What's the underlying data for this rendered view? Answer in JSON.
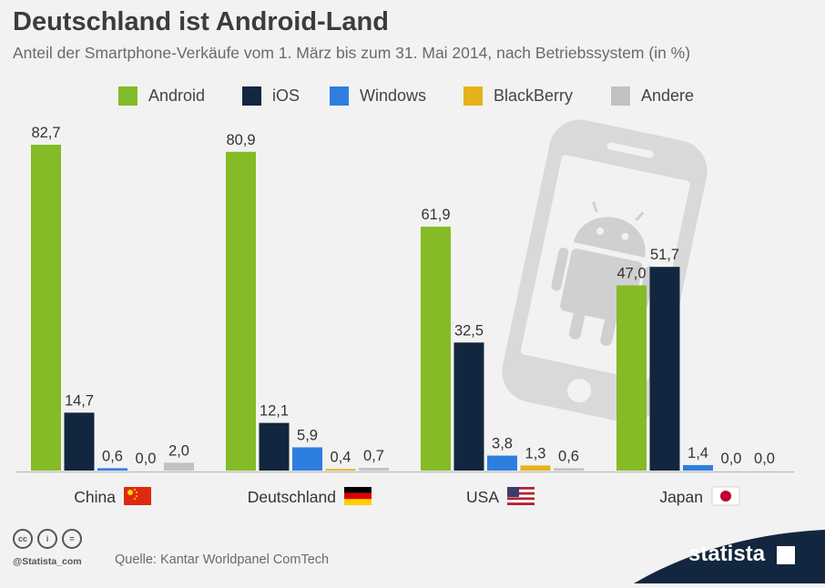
{
  "header": {
    "title": "Deutschland ist Android-Land",
    "subtitle": "Anteil der Smartphone-Verkäufe vom 1. März bis zum 31. Mai 2014, nach Betriebssystem (in %)"
  },
  "colors": {
    "android": "#84bb26",
    "ios": "#13263f",
    "windows": "#2e7ee0",
    "blackberry": "#e5b21c",
    "andere": "#c2c2c2",
    "background": "#f2f2f2",
    "brand": "#13263f"
  },
  "chart_data": {
    "type": "bar",
    "title": "Deutschland ist Android-Land",
    "subtitle": "Anteil der Smartphone-Verkäufe vom 1. März bis zum 31. Mai 2014, nach Betriebssystem (in %)",
    "xlabel": "",
    "ylabel": "",
    "ylim": [
      0,
      100
    ],
    "grid": false,
    "legend_position": "top",
    "categories": [
      "China",
      "Deutschland",
      "USA",
      "Japan"
    ],
    "series": [
      {
        "name": "Android",
        "color": "#84bb26",
        "values": [
          82.7,
          80.9,
          61.9,
          47.0
        ],
        "labels": [
          "82,7",
          "80,9",
          "61,9",
          "47,0"
        ]
      },
      {
        "name": "iOS",
        "color": "#13263f",
        "values": [
          14.7,
          12.1,
          32.5,
          51.7
        ],
        "labels": [
          "14,7",
          "12,1",
          "32,5",
          "51,7"
        ]
      },
      {
        "name": "Windows",
        "color": "#2e7ee0",
        "values": [
          0.6,
          5.9,
          3.8,
          1.4
        ],
        "labels": [
          "0,6",
          "5,9",
          "3,8",
          "1,4"
        ]
      },
      {
        "name": "BlackBerry",
        "color": "#e5b21c",
        "values": [
          0.0,
          0.4,
          1.3,
          0.0
        ],
        "labels": [
          "0,0",
          "0,4",
          "1,3",
          "0,0"
        ]
      },
      {
        "name": "Andere",
        "color": "#c2c2c2",
        "values": [
          2.0,
          0.7,
          0.6,
          0.0
        ],
        "labels": [
          "2,0",
          "0,7",
          "0,6",
          "0,0"
        ]
      }
    ]
  },
  "footer": {
    "source": "Quelle: Kantar Worldpanel ComTech",
    "handle": "@Statista_com",
    "brand": "statista",
    "cc_icons": [
      {
        "name": "cc-icon",
        "glyph": "cc"
      },
      {
        "name": "attribution-icon",
        "glyph": "i"
      },
      {
        "name": "no-derivatives-icon",
        "glyph": "="
      }
    ]
  }
}
